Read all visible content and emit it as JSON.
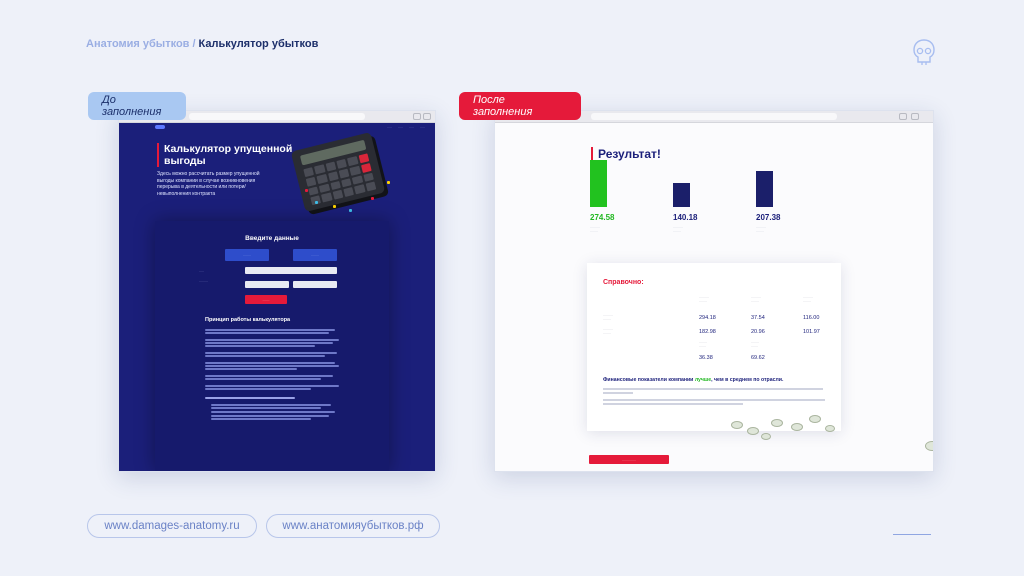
{
  "breadcrumb": {
    "parent": "Анатомия убытков",
    "separator": "/",
    "current": "Калькулятор убытков"
  },
  "icons": {
    "corner": "skull-icon"
  },
  "tags": {
    "before": "До заполнения",
    "after": "После заполнения"
  },
  "left_page": {
    "hero_title": "Калькулятор упущенной выгоды",
    "hero_subtitle": "Здесь можно рассчитать размер упущенной выгоды компании в случае возникновения перерыва в деятельности или потери/невыполнения контракта",
    "form_title": "Введите данные",
    "section_title": "Принцип работы калькулятора"
  },
  "right_page": {
    "title": "Результат!",
    "results": [
      {
        "value": "274.58",
        "color": "#22c21f",
        "level": 0.74
      },
      {
        "value": "140.18",
        "color": "#1b1f6a",
        "level": 0.38
      },
      {
        "value": "207.38",
        "color": "#1b1f6a",
        "level": 0.56
      }
    ],
    "reference_title": "Справочно:",
    "table_values": {
      "r1": [
        "294.18",
        "37.54",
        "116.00"
      ],
      "r2": [
        "182.98",
        "20.96",
        "101.97"
      ],
      "r3": [
        "36.38",
        "69.62"
      ]
    },
    "summary_prefix": "Финансовые показатели компании",
    "summary_good": "лучше",
    "summary_suffix": ", чем в среднем по отрасли."
  },
  "links": {
    "site_one": "www.damages-anatomy.ru",
    "site_two": "www.анатомияубытков.рф"
  },
  "colors": {
    "accent": "#e51a3a",
    "navy": "#1b1f7a",
    "good": "#22b822"
  }
}
